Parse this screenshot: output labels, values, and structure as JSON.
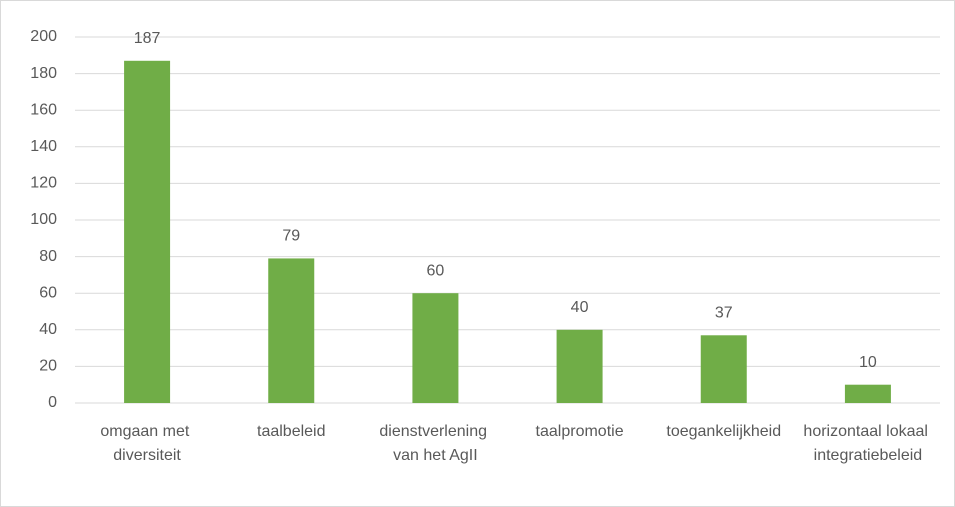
{
  "chart_data": {
    "type": "bar",
    "categories": [
      "omgaan met diversiteit",
      "taalbeleid",
      "dienstverlening van het AgII",
      "taalpromotie",
      "toegankelijkheid",
      "horizontaal lokaal integratiebeleid"
    ],
    "values": [
      187,
      79,
      60,
      40,
      37,
      10
    ],
    "color": "#70ad47",
    "ylim": [
      0,
      200
    ],
    "yticks": [
      0,
      20,
      40,
      60,
      80,
      100,
      120,
      140,
      160,
      180,
      200
    ],
    "grid": true
  }
}
